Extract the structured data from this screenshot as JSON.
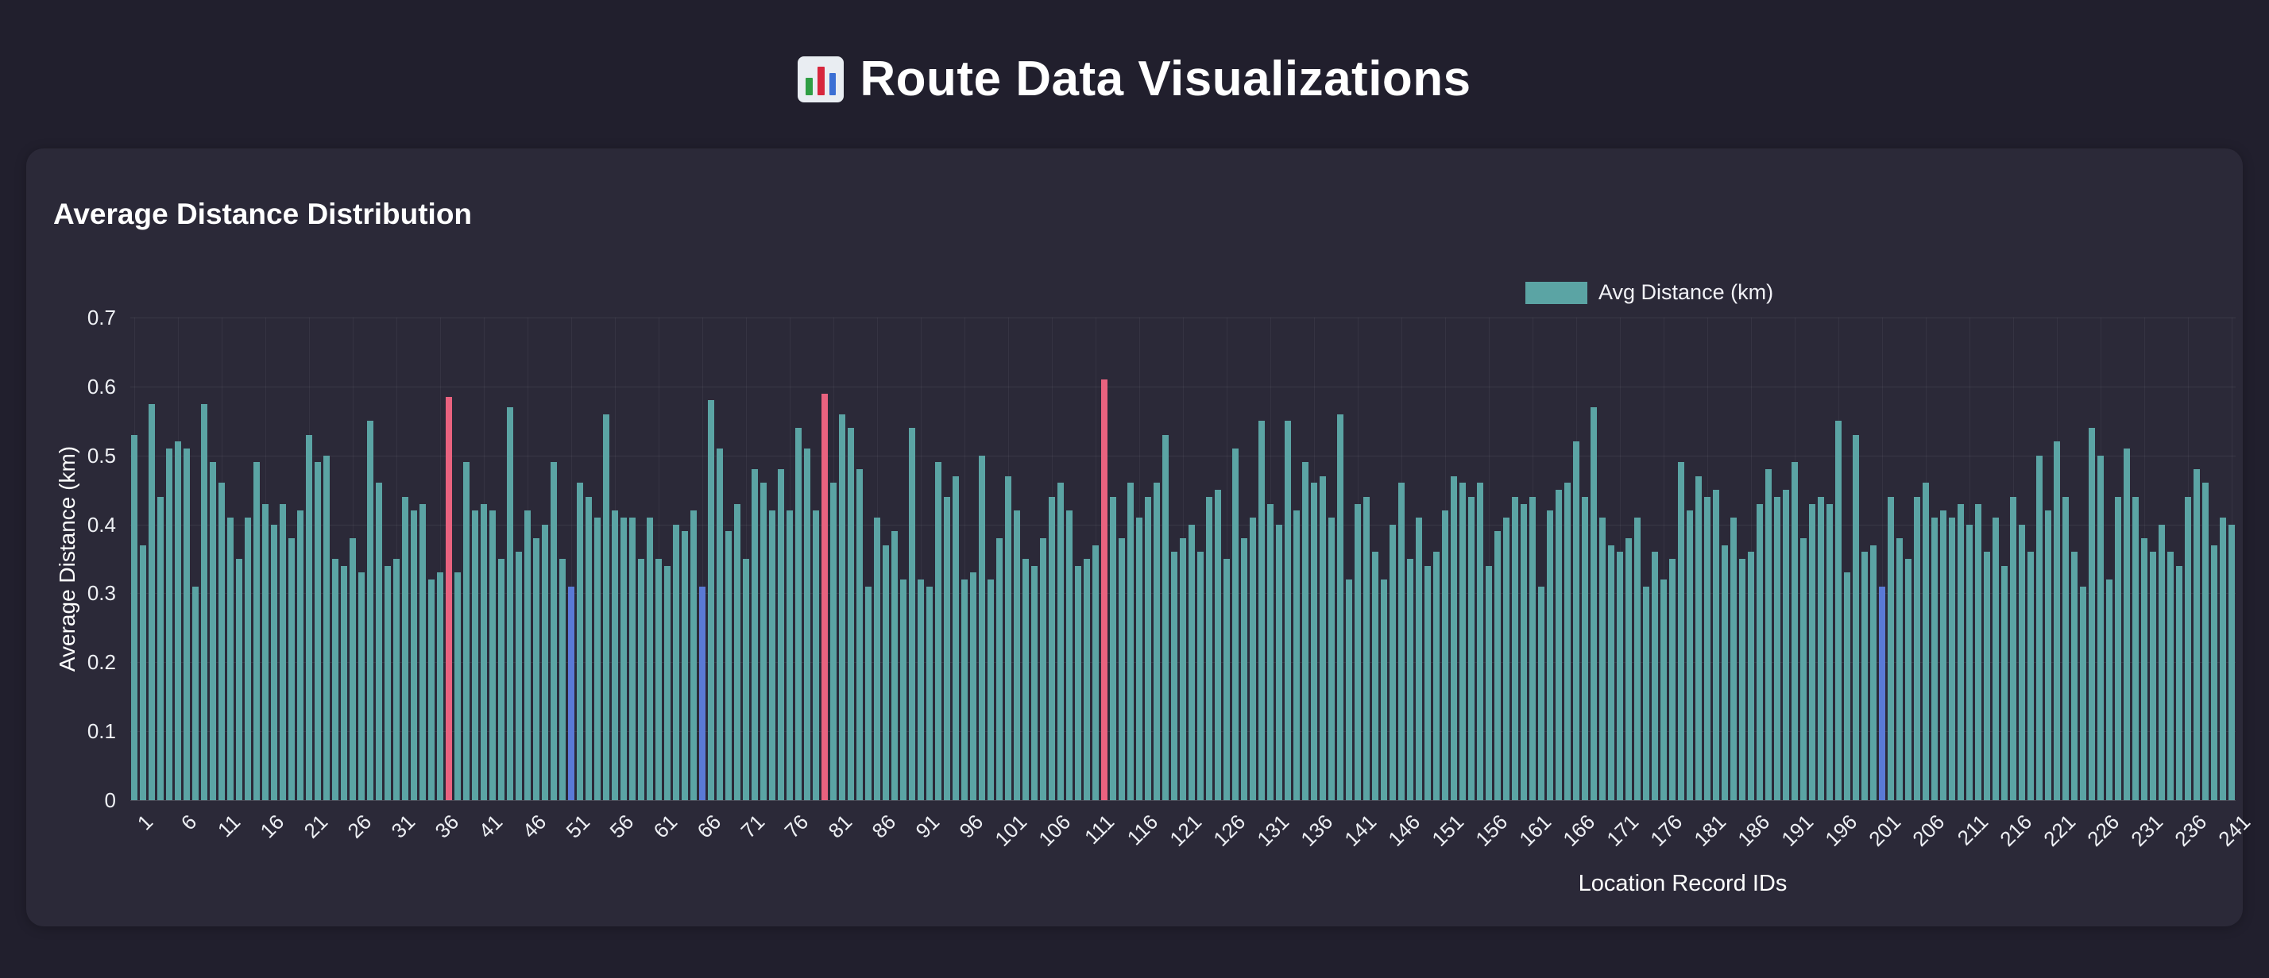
{
  "page": {
    "title": "Route Data Visualizations",
    "title_icon": "bar-chart-icon"
  },
  "card": {
    "title": "Average Distance Distribution"
  },
  "chart_data": {
    "type": "bar",
    "title": "Average Distance Distribution",
    "xlabel": "Location Record IDs",
    "ylabel": "Average Distance (km)",
    "legend_label": "Avg Distance (km)",
    "legend_position": "top-right",
    "grid": true,
    "ylim": [
      0,
      0.7
    ],
    "yticks": [
      0,
      0.1,
      0.2,
      0.3,
      0.4,
      0.5,
      0.6,
      0.7
    ],
    "xtick_start": 1,
    "xtick_step": 5,
    "xtick_labels": [
      "1",
      "6",
      "11",
      "16",
      "21",
      "26",
      "31",
      "36",
      "41",
      "46",
      "51",
      "56",
      "61",
      "66",
      "71",
      "76",
      "81",
      "86",
      "91",
      "96",
      "101",
      "106",
      "111",
      "116",
      "121",
      "126",
      "131",
      "136",
      "141",
      "146",
      "151",
      "156",
      "161",
      "166",
      "171",
      "176",
      "181",
      "186",
      "191",
      "196",
      "201",
      "206",
      "211",
      "216",
      "221",
      "226",
      "231",
      "236",
      "241"
    ],
    "bar_color": "#5ba4a4",
    "highlight_red": {
      "ids": [
        37,
        80,
        112
      ],
      "color": "#e9627f"
    },
    "highlight_blue": {
      "ids": [
        51,
        66,
        201
      ],
      "color": "#5a7ad6"
    },
    "values": [
      0.53,
      0.37,
      0.575,
      0.44,
      0.51,
      0.52,
      0.51,
      0.31,
      0.575,
      0.49,
      0.46,
      0.41,
      0.35,
      0.41,
      0.49,
      0.43,
      0.4,
      0.43,
      0.38,
      0.42,
      0.53,
      0.49,
      0.5,
      0.35,
      0.34,
      0.38,
      0.33,
      0.55,
      0.46,
      0.34,
      0.35,
      0.44,
      0.42,
      0.43,
      0.32,
      0.33,
      0.585,
      0.33,
      0.49,
      0.42,
      0.43,
      0.42,
      0.35,
      0.57,
      0.36,
      0.42,
      0.38,
      0.4,
      0.49,
      0.35,
      0.31,
      0.46,
      0.44,
      0.41,
      0.56,
      0.42,
      0.41,
      0.41,
      0.35,
      0.41,
      0.35,
      0.34,
      0.4,
      0.39,
      0.42,
      0.31,
      0.58,
      0.51,
      0.39,
      0.43,
      0.35,
      0.48,
      0.46,
      0.42,
      0.48,
      0.42,
      0.54,
      0.51,
      0.42,
      0.59,
      0.46,
      0.56,
      0.54,
      0.48,
      0.31,
      0.41,
      0.37,
      0.39,
      0.32,
      0.54,
      0.32,
      0.31,
      0.49,
      0.44,
      0.47,
      0.32,
      0.33,
      0.5,
      0.32,
      0.38,
      0.47,
      0.42,
      0.35,
      0.34,
      0.38,
      0.44,
      0.46,
      0.42,
      0.34,
      0.35,
      0.37,
      0.61,
      0.44,
      0.38,
      0.46,
      0.41,
      0.44,
      0.46,
      0.53,
      0.36,
      0.38,
      0.4,
      0.36,
      0.44,
      0.45,
      0.35,
      0.51,
      0.38,
      0.41,
      0.55,
      0.43,
      0.4,
      0.55,
      0.42,
      0.49,
      0.46,
      0.47,
      0.41,
      0.56,
      0.32,
      0.43,
      0.44,
      0.36,
      0.32,
      0.4,
      0.46,
      0.35,
      0.41,
      0.34,
      0.36,
      0.42,
      0.47,
      0.46,
      0.44,
      0.46,
      0.34,
      0.39,
      0.41,
      0.44,
      0.43,
      0.44,
      0.31,
      0.42,
      0.45,
      0.46,
      0.52,
      0.44,
      0.57,
      0.41,
      0.37,
      0.36,
      0.38,
      0.41,
      0.31,
      0.36,
      0.32,
      0.35,
      0.49,
      0.42,
      0.47,
      0.44,
      0.45,
      0.37,
      0.41,
      0.35,
      0.36,
      0.43,
      0.48,
      0.44,
      0.45,
      0.49,
      0.38,
      0.43,
      0.44,
      0.43,
      0.55,
      0.33,
      0.53,
      0.36,
      0.37,
      0.31,
      0.44,
      0.38,
      0.35,
      0.44,
      0.46,
      0.41,
      0.42,
      0.41,
      0.43,
      0.4,
      0.43,
      0.36,
      0.41,
      0.34,
      0.44,
      0.4,
      0.36,
      0.5,
      0.42,
      0.52,
      0.44,
      0.36,
      0.31,
      0.54,
      0.5,
      0.32,
      0.44,
      0.51,
      0.44,
      0.38,
      0.36,
      0.4,
      0.36,
      0.34,
      0.44,
      0.48,
      0.46,
      0.37,
      0.41,
      0.4
    ]
  },
  "colors": {
    "page_bg": "#211f2d",
    "card_bg": "#2b2938",
    "text": "#ffffff",
    "grid": "rgba(255,255,255,0.07)"
  }
}
